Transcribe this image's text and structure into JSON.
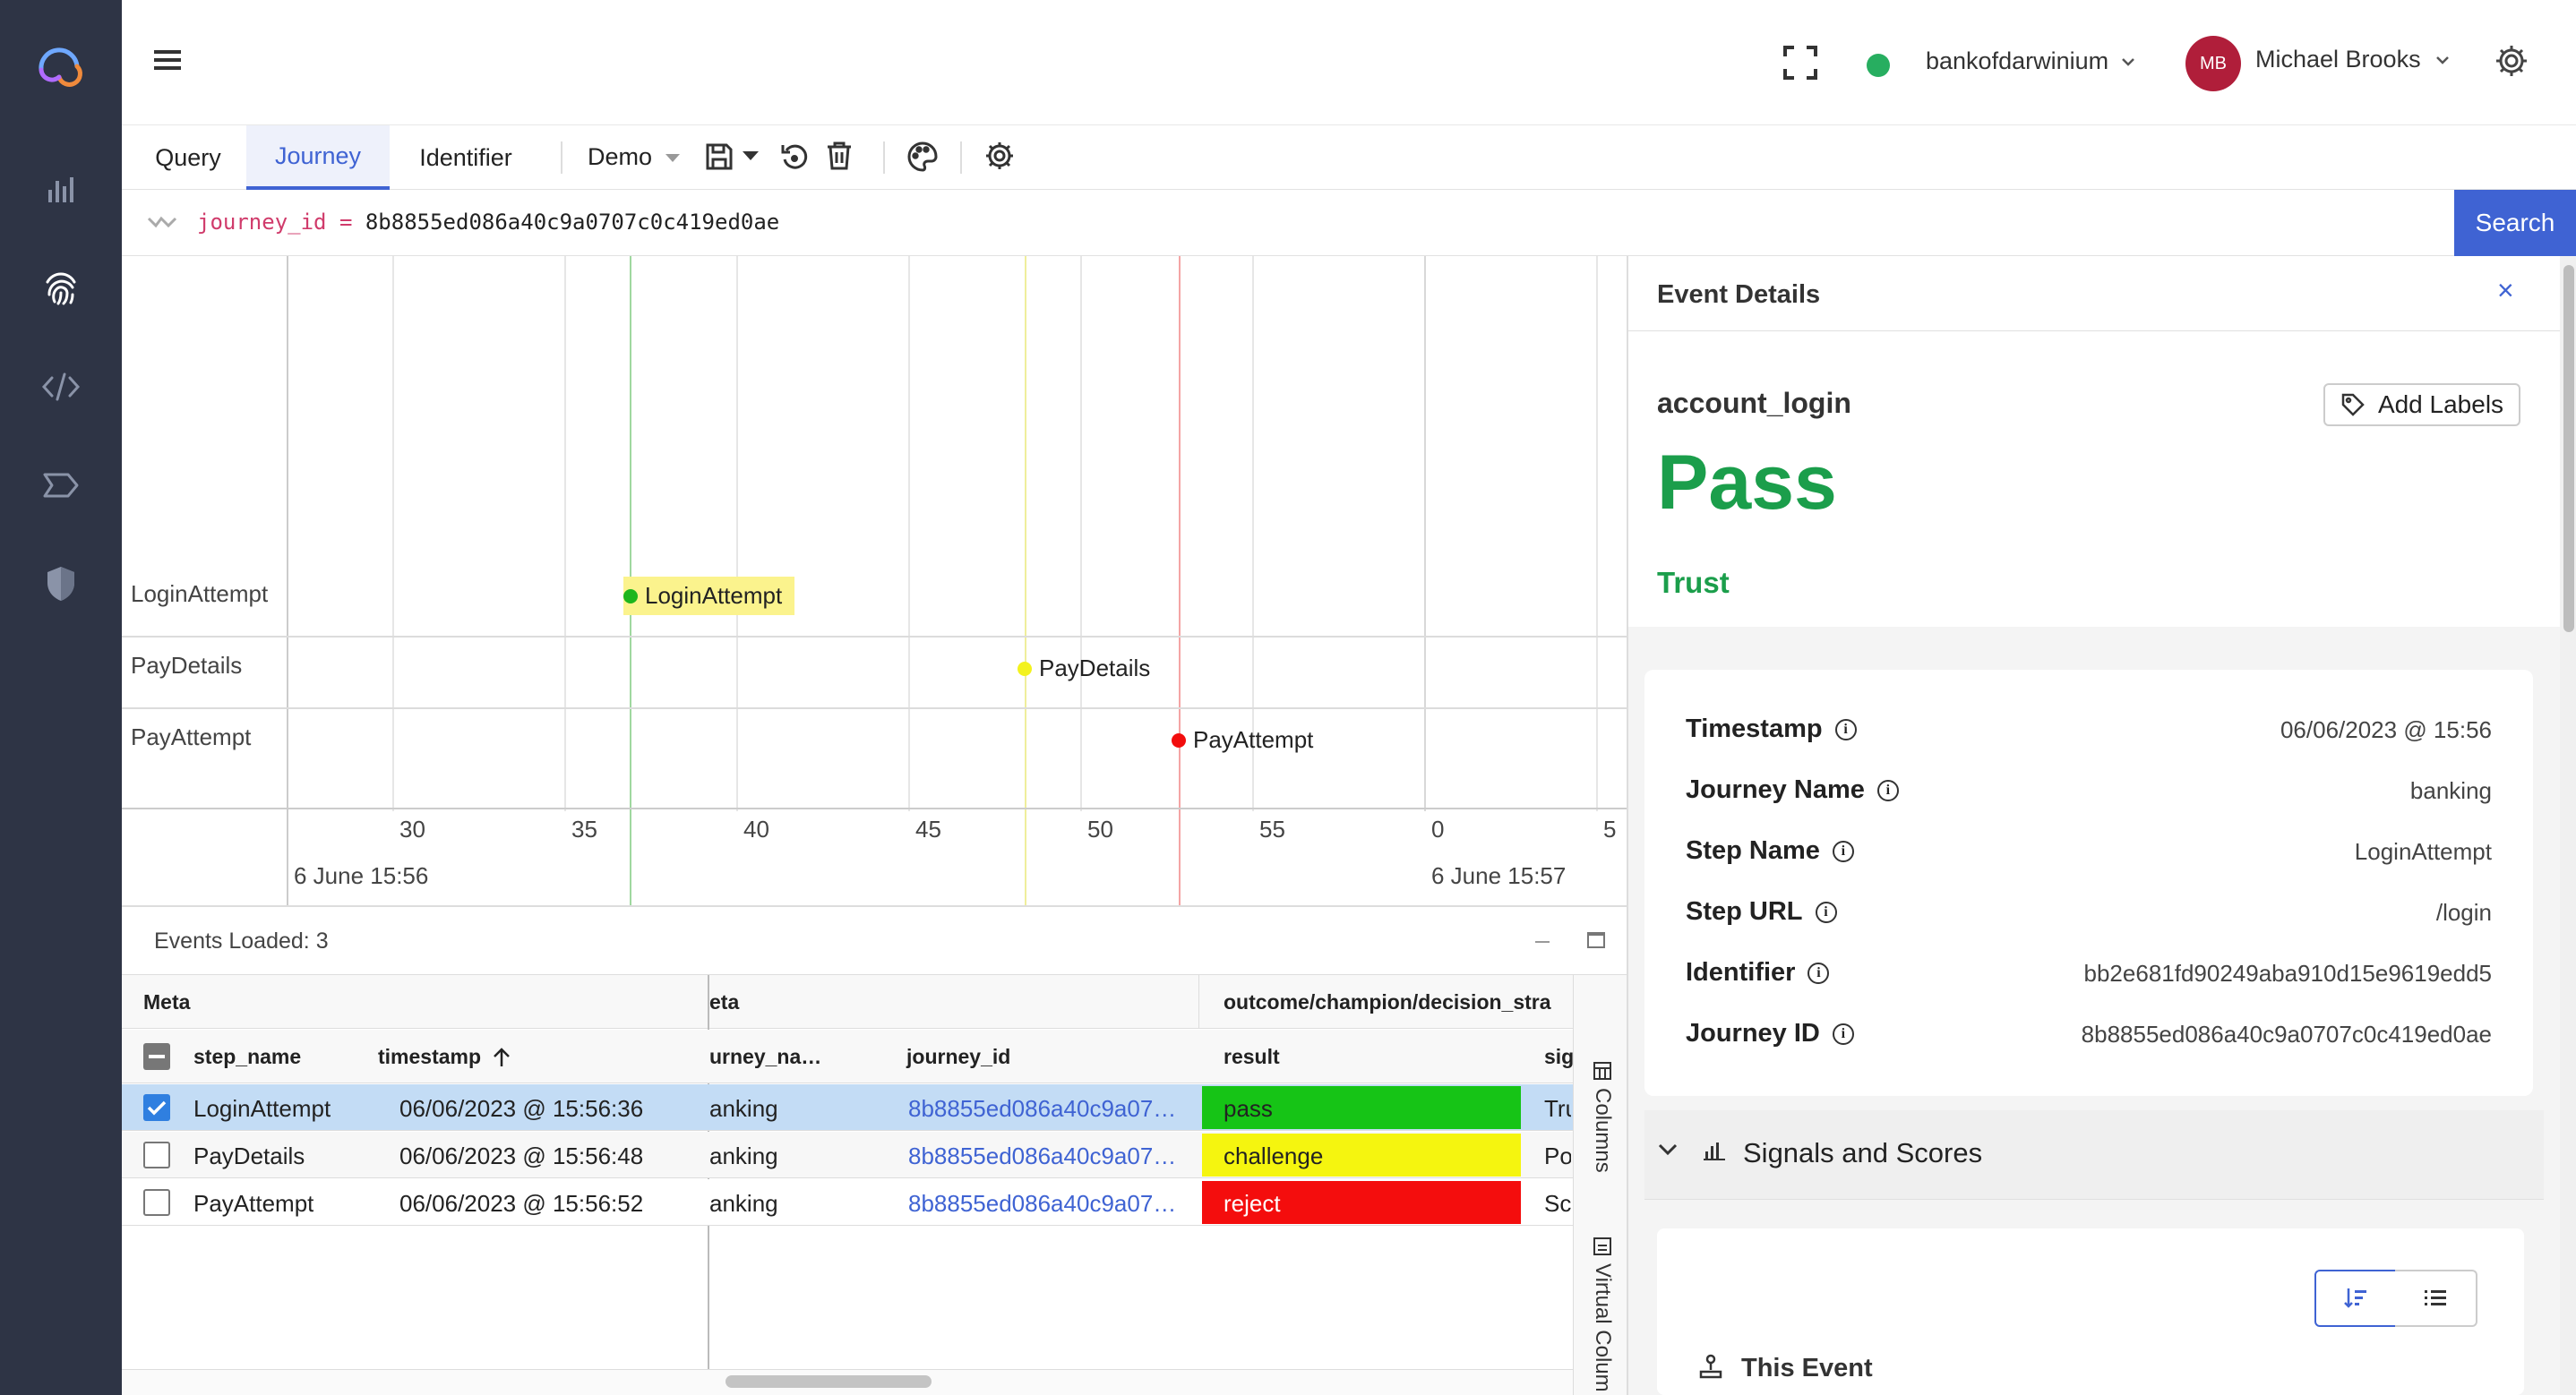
{
  "header": {
    "org_name": "bankofdarwinium",
    "org_status_color": "#27ae60",
    "user_initials": "MB",
    "user_name": "Michael Brooks"
  },
  "nav_icons": [
    "logo-icon",
    "analytics-icon",
    "fingerprint-icon",
    "code-icon",
    "tag-icon",
    "shield-icon"
  ],
  "tabs": [
    {
      "label": "Query",
      "active": false
    },
    {
      "label": "Journey",
      "active": true
    },
    {
      "label": "Identifier",
      "active": false
    }
  ],
  "toolbar": {
    "preset": "Demo"
  },
  "query": {
    "key": "journey_id",
    "op": "=",
    "value": "8b8855ed086a40c9a0707c0c419ed0ae",
    "search_label": "Search"
  },
  "timeline": {
    "rows": [
      "LoginAttempt",
      "PayDetails",
      "PayAttempt"
    ],
    "ticks": [
      "30",
      "35",
      "40",
      "45",
      "50",
      "55",
      "0",
      "5"
    ],
    "date_labels": [
      "6 June 15:56",
      "6 June 15:57"
    ],
    "events": [
      {
        "label": "LoginAttempt",
        "color": "#1db61d",
        "highlight": true
      },
      {
        "label": "PayDetails",
        "color": "#f3f21d",
        "highlight": false
      },
      {
        "label": "PayAttempt",
        "color": "#f20d0d",
        "highlight": false
      }
    ]
  },
  "events_panel": {
    "loaded_label": "Events Loaded: 3",
    "groups": [
      "Meta",
      "eta",
      "outcome/champion/decision_stra"
    ],
    "columns": [
      "step_name",
      "timestamp",
      "urney_na…",
      "journey_id",
      "result",
      "sig"
    ],
    "side_tabs": [
      "Columns",
      "Virtual Colum"
    ],
    "rows": [
      {
        "step_name": "LoginAttempt",
        "timestamp": "06/06/2023 @ 15:56:36",
        "journey_name": "anking",
        "journey_id": "8b8855ed086a40c9a07…",
        "result": "pass",
        "result_color": "#16c416",
        "sig": "Tru",
        "selected": true
      },
      {
        "step_name": "PayDetails",
        "timestamp": "06/06/2023 @ 15:56:48",
        "journey_name": "anking",
        "journey_id": "8b8855ed086a40c9a07…",
        "result": "challenge",
        "result_color": "#f5f50f",
        "sig": "Po",
        "selected": false
      },
      {
        "step_name": "PayAttempt",
        "timestamp": "06/06/2023 @ 15:56:52",
        "journey_name": "anking",
        "journey_id": "8b8855ed086a40c9a07…",
        "result": "reject",
        "result_color": "#f40d0d",
        "sig": "Sc",
        "selected": false
      }
    ]
  },
  "details": {
    "title": "Event Details",
    "event_name": "account_login",
    "add_labels": "Add Labels",
    "outcome": "Pass",
    "outcome_color": "#1b9e4b",
    "trust": "Trust",
    "fields": [
      {
        "label": "Timestamp",
        "value": "06/06/2023 @ 15:56"
      },
      {
        "label": "Journey Name",
        "value": "banking"
      },
      {
        "label": "Step Name",
        "value": "LoginAttempt"
      },
      {
        "label": "Step URL",
        "value": "/login"
      },
      {
        "label": "Identifier",
        "value": "bb2e681fd90249aba910d15e9619edd5"
      },
      {
        "label": "Journey ID",
        "value": "8b8855ed086a40c9a0707c0c419ed0ae"
      }
    ],
    "signals_title": "Signals and Scores",
    "this_event": "This Event"
  }
}
